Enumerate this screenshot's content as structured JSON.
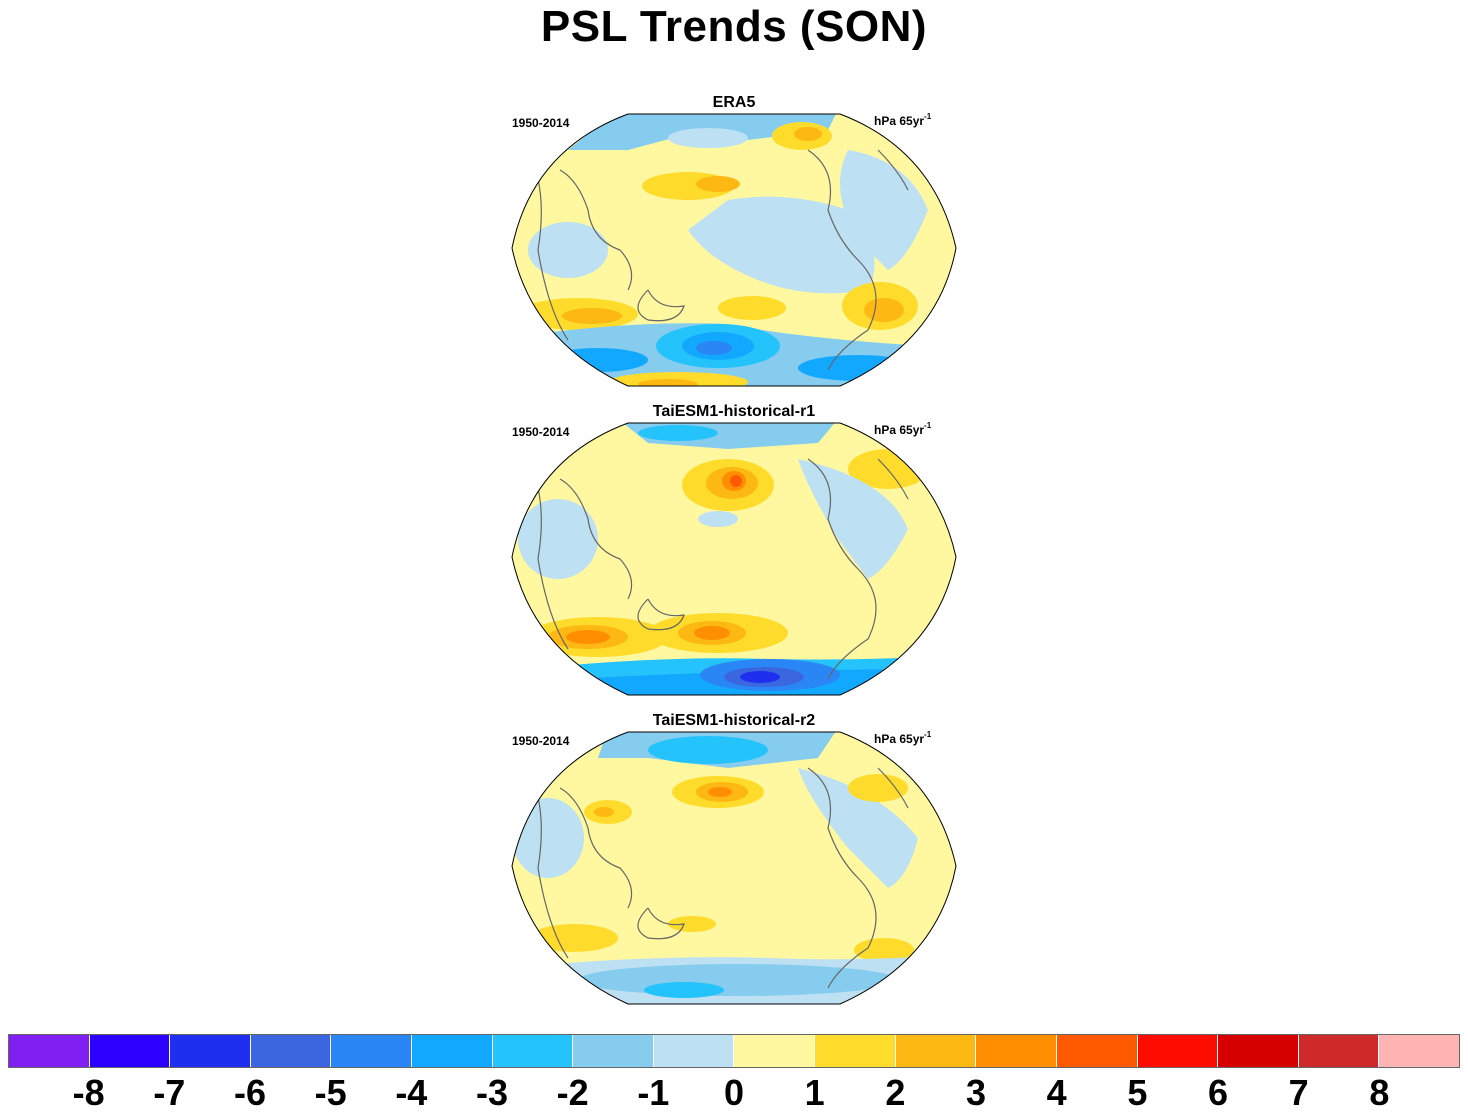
{
  "title": "PSL Trends (SON)",
  "panels": [
    {
      "name": "ERA5",
      "period": "1950-2014",
      "units_base": "hPa 65yr",
      "units_exp": "-1"
    },
    {
      "name": "TaiESM1-historical-r1",
      "period": "1950-2014",
      "units_base": "hPa 65yr",
      "units_exp": "-1"
    },
    {
      "name": "TaiESM1-historical-r2",
      "period": "1950-2014",
      "units_base": "hPa 65yr",
      "units_exp": "-1"
    }
  ],
  "colorbar": {
    "colors": [
      "#7f20f0",
      "#2b00ff",
      "#1f2ff0",
      "#3a67e0",
      "#2a86f5",
      "#12a8ff",
      "#25c3fb",
      "#86ccee",
      "#bde0f2",
      "#fff8a0",
      "#ffdc2c",
      "#fdb814",
      "#ff8f00",
      "#ff5a00",
      "#ff0c00",
      "#d70000",
      "#cf2a2a",
      "#ffb4b4"
    ],
    "labels": [
      "-8",
      "-7",
      "-6",
      "-5",
      "-4",
      "-3",
      "-2",
      "-1",
      "0",
      "1",
      "2",
      "3",
      "4",
      "5",
      "6",
      "7",
      "8"
    ]
  }
}
